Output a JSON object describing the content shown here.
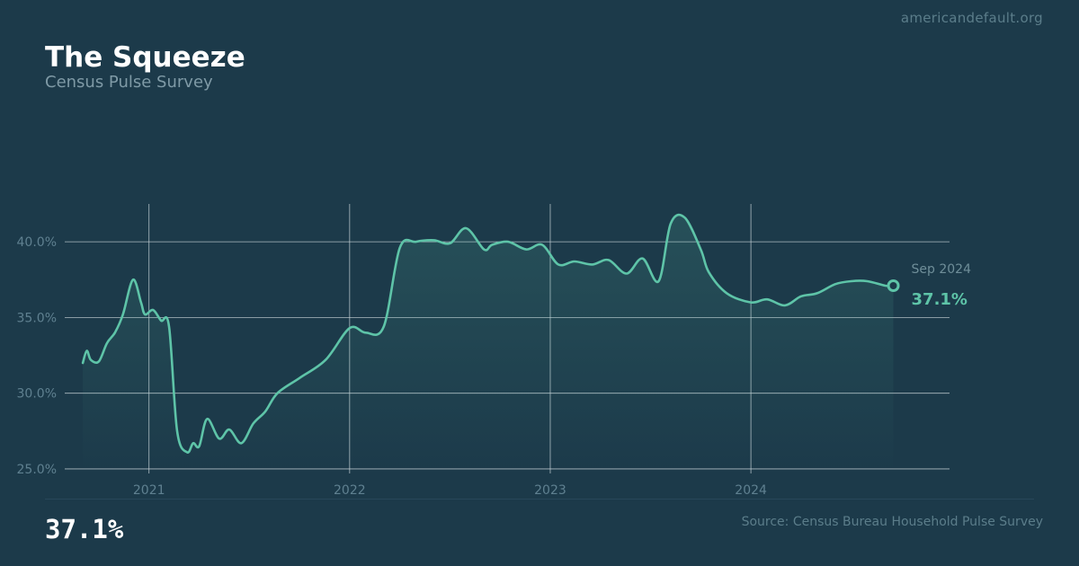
{
  "header": {
    "site": "americandefault.org",
    "title": "The Squeeze",
    "subtitle": "Census Pulse Survey"
  },
  "footer": {
    "big_value": "37.1%",
    "source": "Source: Census Bureau Household Pulse Survey"
  },
  "annotation": {
    "date": "Sep 2024",
    "value": "37.1%"
  },
  "colors": {
    "background": "#1c3a4a",
    "line": "#5ec4a8",
    "grid": "#c8d4d8"
  },
  "chart_data": {
    "type": "line",
    "title": "The Squeeze",
    "subtitle": "Census Pulse Survey",
    "xlabel": "",
    "ylabel": "",
    "x_ticks": [
      2021,
      2022,
      2023,
      2024
    ],
    "y_ticks": [
      "25.0%",
      "30.0%",
      "35.0%",
      "40.0%"
    ],
    "y_tick_values": [
      25,
      30,
      35,
      40
    ],
    "xlim": [
      2020.58,
      2024.99
    ],
    "ylim": [
      24.7,
      42.5
    ],
    "grid": true,
    "area_fill": true,
    "series": [
      {
        "x": [
          2020.67,
          2020.69,
          2020.71,
          2020.75,
          2020.79,
          2020.83,
          2020.87,
          2020.92,
          2020.96,
          2020.98,
          2021.02,
          2021.06,
          2021.1,
          2021.14,
          2021.19,
          2021.22,
          2021.25,
          2021.29,
          2021.35,
          2021.4,
          2021.46,
          2021.52,
          2021.58,
          2021.64,
          2021.75,
          2021.88,
          2022.0,
          2022.08,
          2022.17,
          2022.25,
          2022.33,
          2022.42,
          2022.5,
          2022.58,
          2022.67,
          2022.71,
          2022.79,
          2022.88,
          2022.96,
          2023.04,
          2023.12,
          2023.21,
          2023.29,
          2023.38,
          2023.46,
          2023.54,
          2023.6,
          2023.67,
          2023.75,
          2023.79,
          2023.88,
          2024.0,
          2024.08,
          2024.17,
          2024.25,
          2024.33,
          2024.42,
          2024.5,
          2024.58,
          2024.67,
          2024.71
        ],
        "y": [
          32.0,
          32.8,
          32.2,
          32.1,
          33.3,
          34.0,
          35.2,
          37.5,
          36.0,
          35.2,
          35.5,
          34.8,
          34.4,
          27.5,
          26.1,
          26.7,
          26.5,
          28.3,
          27.0,
          27.6,
          26.7,
          28.0,
          28.8,
          30.0,
          31.0,
          32.2,
          34.3,
          34.0,
          34.4,
          39.6,
          40.0,
          40.1,
          39.9,
          40.9,
          39.5,
          39.8,
          40.0,
          39.5,
          39.8,
          38.5,
          38.7,
          38.5,
          38.8,
          37.9,
          38.9,
          37.4,
          41.2,
          41.6,
          39.5,
          38.0,
          36.6,
          36.0,
          36.2,
          35.8,
          36.4,
          36.6,
          37.2,
          37.4,
          37.4,
          37.1,
          37.1
        ]
      }
    ]
  }
}
